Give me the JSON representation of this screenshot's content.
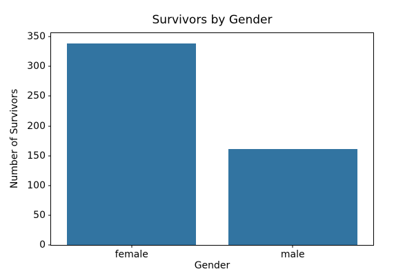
{
  "chart_data": {
    "type": "bar",
    "title": "Survivors by Gender",
    "xlabel": "Gender",
    "ylabel": "Number of Survivors",
    "categories": [
      "female",
      "male"
    ],
    "values": [
      339,
      161
    ],
    "yticks": [
      0,
      50,
      100,
      150,
      200,
      250,
      300,
      350
    ],
    "ylim": [
      0,
      356
    ],
    "bar_color": "#3274A1",
    "bar_width_fraction": 0.8,
    "grid": false,
    "legend": "none",
    "background_color": "#ffffff",
    "spine_color": "#000000"
  }
}
